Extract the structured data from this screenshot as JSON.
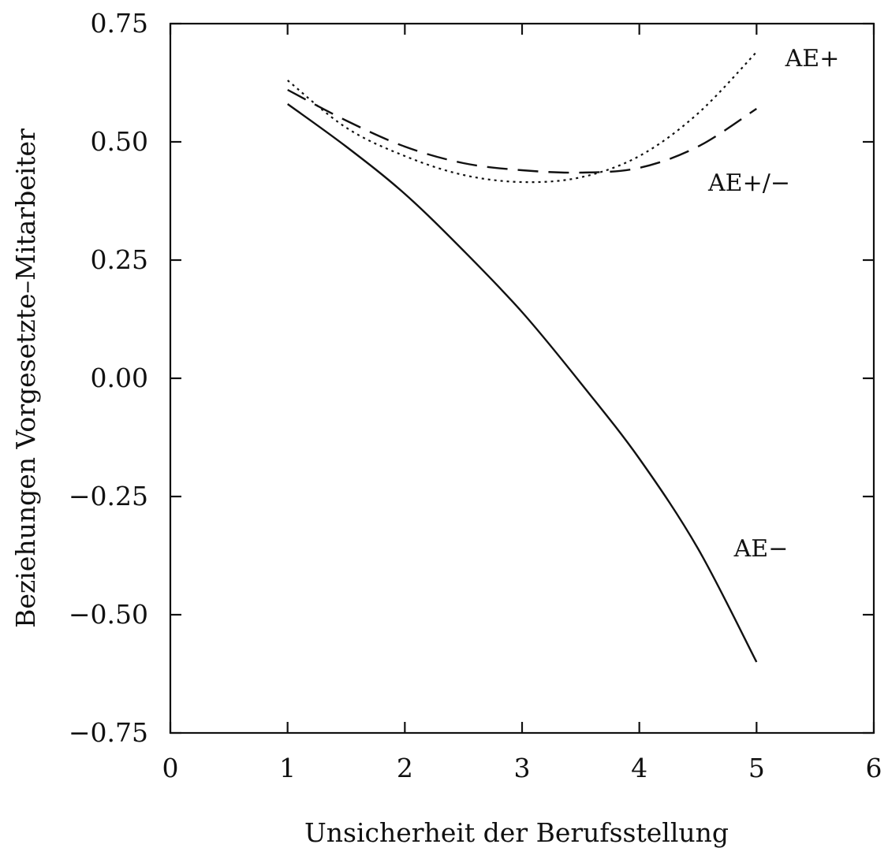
{
  "chart_data": {
    "type": "line",
    "title": "",
    "xlabel": "Unsicherheit der Berufsstellung",
    "ylabel": "Beziehungen Vorgesetzte–Mitarbeiter",
    "xlim": [
      0,
      6
    ],
    "ylim": [
      -0.75,
      0.75
    ],
    "x_ticks": [
      "0",
      "1",
      "2",
      "3",
      "4",
      "5",
      "6"
    ],
    "y_ticks": [
      "0.75",
      "0.50",
      "0.25",
      "0.00",
      "−0.25",
      "−0.50",
      "−0.75"
    ],
    "grid": false,
    "legend": "inline labels at line ends",
    "series": [
      {
        "name": "AE+",
        "style": "dotted",
        "x": [
          1.0,
          1.5,
          2.0,
          2.5,
          3.0,
          3.5,
          4.0,
          4.5,
          5.0
        ],
        "y": [
          0.63,
          0.53,
          0.47,
          0.43,
          0.415,
          0.425,
          0.47,
          0.56,
          0.69
        ]
      },
      {
        "name": "AE+/−",
        "style": "dashed",
        "x": [
          1.0,
          1.5,
          2.0,
          2.5,
          3.0,
          3.5,
          4.0,
          4.5,
          5.0
        ],
        "y": [
          0.61,
          0.545,
          0.49,
          0.455,
          0.44,
          0.435,
          0.445,
          0.49,
          0.57
        ]
      },
      {
        "name": "AE−",
        "style": "solid",
        "x": [
          1.0,
          1.5,
          2.0,
          2.5,
          3.0,
          3.5,
          4.0,
          4.5,
          5.0
        ],
        "y": [
          0.58,
          0.49,
          0.39,
          0.27,
          0.14,
          -0.01,
          -0.17,
          -0.36,
          -0.6
        ]
      }
    ]
  }
}
